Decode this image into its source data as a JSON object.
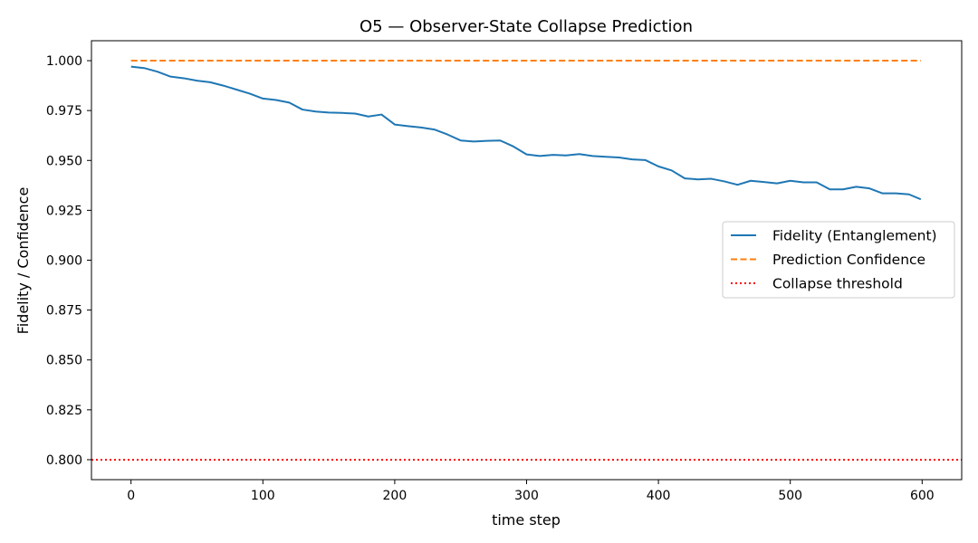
{
  "chart_data": {
    "type": "line",
    "title": "O5 — Observer-State Collapse Prediction",
    "xlabel": "time step",
    "ylabel": "Fidelity / Confidence",
    "xlim": [
      -30,
      630
    ],
    "ylim": [
      0.79,
      1.01
    ],
    "xticks": [
      0,
      100,
      200,
      300,
      400,
      500,
      600
    ],
    "xtick_labels": [
      "0",
      "100",
      "200",
      "300",
      "400",
      "500",
      "600"
    ],
    "yticks": [
      0.8,
      0.825,
      0.85,
      0.875,
      0.9,
      0.925,
      0.95,
      0.975,
      1.0
    ],
    "ytick_labels": [
      "0.800",
      "0.825",
      "0.850",
      "0.875",
      "0.900",
      "0.925",
      "0.950",
      "0.975",
      "1.000"
    ],
    "grid": false,
    "legend_position": "center-right",
    "series": [
      {
        "name": "Fidelity (Entanglement)",
        "color": "#1f77b4",
        "style": "solid",
        "x": [
          0,
          10,
          20,
          30,
          40,
          50,
          60,
          70,
          80,
          90,
          100,
          110,
          120,
          130,
          140,
          150,
          160,
          170,
          180,
          190,
          200,
          210,
          220,
          230,
          240,
          250,
          260,
          270,
          280,
          290,
          300,
          310,
          320,
          330,
          340,
          350,
          360,
          370,
          380,
          390,
          400,
          410,
          420,
          430,
          440,
          450,
          460,
          470,
          480,
          490,
          500,
          510,
          520,
          530,
          540,
          550,
          560,
          570,
          580,
          590,
          599
        ],
        "values": [
          0.997,
          0.9963,
          0.9945,
          0.992,
          0.9912,
          0.99,
          0.9892,
          0.9875,
          0.9855,
          0.9835,
          0.981,
          0.9803,
          0.979,
          0.9755,
          0.9745,
          0.974,
          0.9738,
          0.9735,
          0.972,
          0.973,
          0.968,
          0.9672,
          0.9665,
          0.9655,
          0.963,
          0.96,
          0.9595,
          0.9598,
          0.96,
          0.957,
          0.953,
          0.9522,
          0.9528,
          0.9525,
          0.9532,
          0.9522,
          0.9518,
          0.9515,
          0.9505,
          0.9502,
          0.947,
          0.945,
          0.941,
          0.9405,
          0.9408,
          0.9395,
          0.9378,
          0.9398,
          0.9392,
          0.9385,
          0.9398,
          0.939,
          0.939,
          0.9355,
          0.9355,
          0.9368,
          0.936,
          0.9335,
          0.9335,
          0.933,
          0.9305
        ]
      },
      {
        "name": "Prediction Confidence",
        "color": "#ff7f0e",
        "style": "dashed",
        "x": [
          0,
          599
        ],
        "values": [
          1.0,
          1.0
        ]
      },
      {
        "name": "Collapse threshold",
        "color": "#ff0000",
        "style": "dotted",
        "x": [
          -30,
          630
        ],
        "values": [
          0.8,
          0.8
        ]
      }
    ]
  }
}
